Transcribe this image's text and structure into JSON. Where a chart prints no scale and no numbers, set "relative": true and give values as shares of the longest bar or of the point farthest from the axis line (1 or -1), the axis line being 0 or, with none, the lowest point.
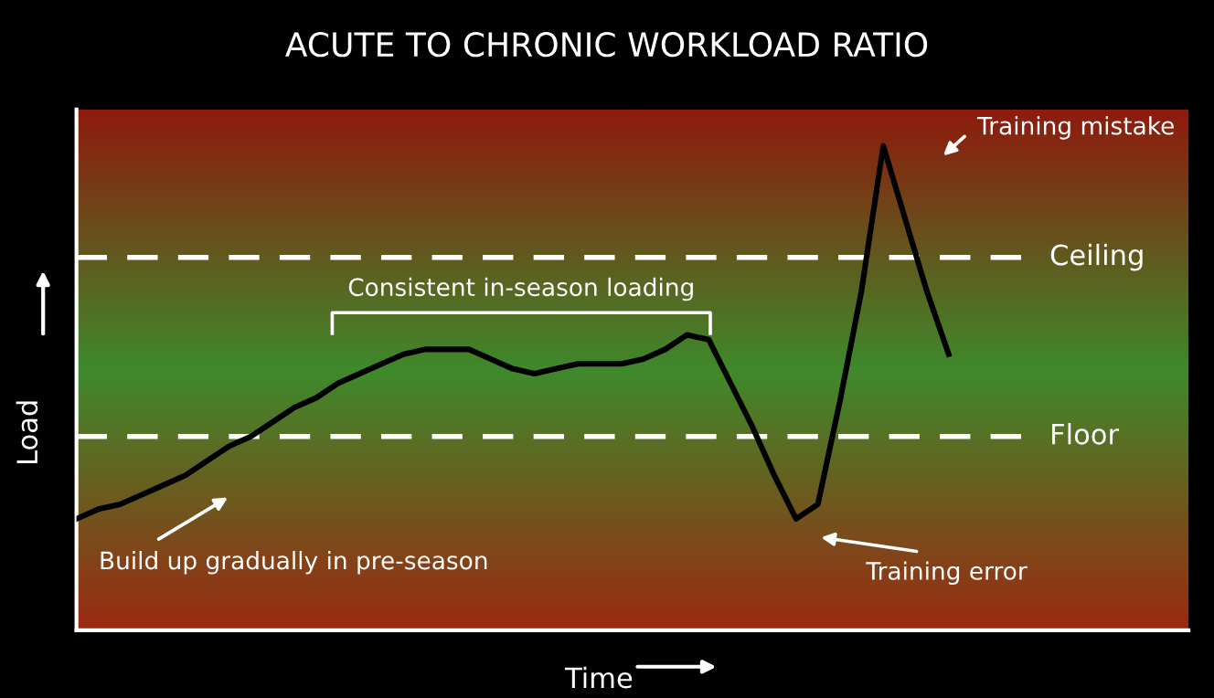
{
  "chart_data": {
    "type": "line",
    "title": "ACUTE TO CHRONIC WORKLOAD RATIO",
    "xlabel": "Time",
    "ylabel": "Load",
    "relative": true,
    "color": "#000000",
    "legend": false,
    "marker": "none",
    "line_style": "solid",
    "categories": [
      null,
      null,
      null,
      null,
      null,
      null,
      null,
      null,
      null,
      null,
      null,
      null,
      null,
      null,
      null,
      null,
      null,
      null,
      null,
      null,
      null,
      null,
      null,
      null,
      null,
      null,
      null,
      null,
      null,
      null,
      null,
      null,
      null,
      null,
      null,
      null,
      null,
      null,
      null,
      null,
      null,
      null,
      null,
      null,
      null,
      null,
      null,
      null,
      null,
      null,
      null,
      null
    ],
    "values": [
      0.23,
      0.25,
      0.26,
      0.28,
      0.3,
      0.32,
      0.35,
      0.38,
      0.4,
      0.43,
      0.46,
      0.48,
      0.51,
      0.53,
      0.55,
      0.57,
      0.58,
      0.58,
      0.58,
      0.56,
      0.54,
      0.53,
      0.54,
      0.55,
      0.55,
      0.55,
      0.56,
      0.58,
      0.61,
      0.6,
      0.51,
      0.42,
      0.32,
      0.23,
      0.26,
      0.47,
      0.7,
      1.0,
      0.85,
      0.7,
      0.57,
      null,
      null,
      null,
      null,
      null,
      null,
      null,
      null,
      null,
      null,
      null
    ],
    "ref_lines": [
      {
        "axis": "y",
        "value": 0.77,
        "label": "Ceiling",
        "color": "#ffffff",
        "line_style": "dashed"
      },
      {
        "axis": "y",
        "value": 0.4,
        "label": "Floor",
        "color": "#ffffff",
        "line_style": "dashed"
      }
    ],
    "annotations": [
      "Training mistake",
      "Consistent in-season loading",
      "Build up gradually in pre-season",
      "Training error"
    ]
  }
}
